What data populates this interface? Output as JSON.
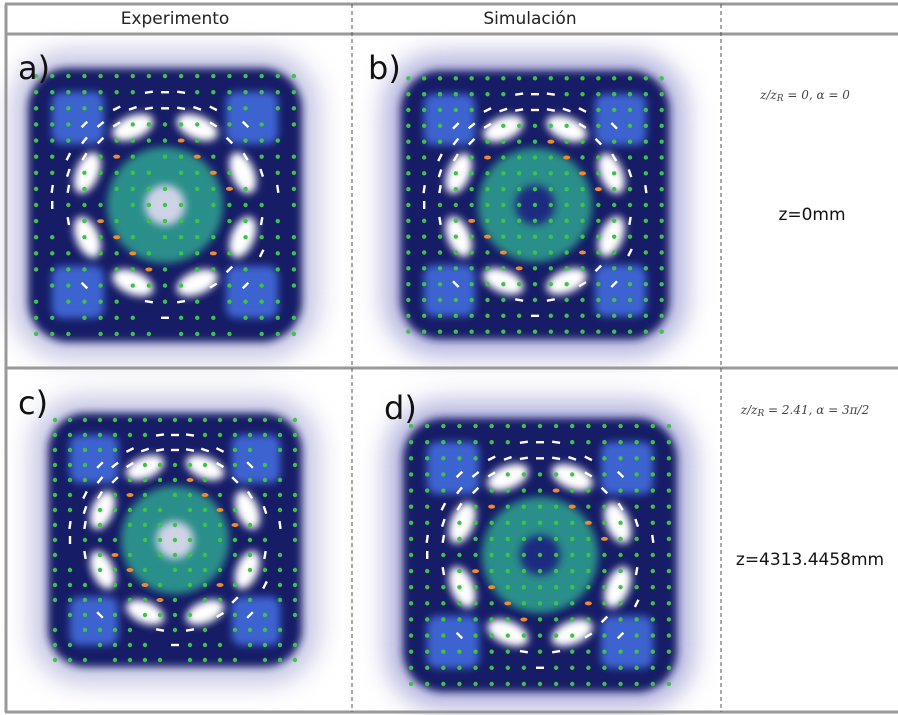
{
  "header": {
    "experiment": "Experimento",
    "simulation": "Simulación"
  },
  "panels": [
    {
      "label": "a)"
    },
    {
      "label": "b)"
    },
    {
      "label": "c)"
    },
    {
      "label": "d)"
    }
  ],
  "rows": [
    {
      "formula": {
        "pre": "z/z",
        "sub": "R",
        "post": " = 0, α = 0"
      },
      "z": "z=0mm"
    },
    {
      "formula": {
        "pre": "z/z",
        "sub": "R",
        "post": " = 2.41, α = 3π/2"
      },
      "z": "z=4313.4458mm"
    }
  ]
}
